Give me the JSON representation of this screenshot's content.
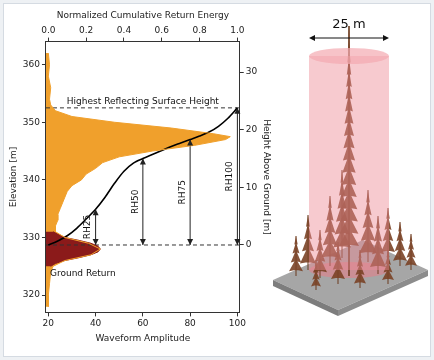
{
  "chart_data": {
    "type": "line",
    "xlabel": "Waveform Amplitude",
    "x2label": "Normalized Cumulative Return Energy",
    "ylabel": "Elevation [m]",
    "y2label": "Height Above Ground [m]",
    "xlim": [
      19,
      101
    ],
    "xticks": [
      20,
      40,
      60,
      80,
      100
    ],
    "x2lim": [
      -0.0125,
      1.0125
    ],
    "x2ticks": [
      {
        "value": 0,
        "label": "0.0"
      },
      {
        "value": 0.2,
        "label": "0.2"
      },
      {
        "value": 0.4,
        "label": "0.4"
      },
      {
        "value": 0.6,
        "label": "0.6"
      },
      {
        "value": 0.8,
        "label": "0.8"
      },
      {
        "value": 1,
        "label": "1.0"
      }
    ],
    "ylim": [
      317,
      364
    ],
    "yticks": [
      320,
      330,
      340,
      350,
      360
    ],
    "y2lim": [
      -11.7,
      35.3
    ],
    "y2ticks": [
      0,
      10,
      20,
      30
    ],
    "grid": false,
    "series": [
      {
        "type": "area",
        "color": "#f0a02c",
        "x": [
          20,
          20.5,
          20,
          21,
          20.5,
          21,
          23,
          30,
          48,
          72,
          90,
          97,
          95,
          82,
          64,
          50,
          43,
          40,
          36,
          34,
          30,
          28,
          27,
          26,
          25,
          24,
          24,
          23,
          23,
          27,
          37,
          42,
          38,
          27,
          22,
          21,
          20.5,
          20,
          20
        ],
        "y": [
          362,
          360,
          358,
          356,
          354,
          353,
          352,
          351,
          350,
          349,
          348,
          347.5,
          347,
          346,
          345,
          344,
          343,
          342,
          341,
          340,
          339,
          338,
          337,
          336,
          335,
          334,
          333,
          332,
          331,
          330,
          329,
          328,
          327,
          326,
          325,
          324,
          322,
          320,
          318
        ]
      },
      {
        "type": "area",
        "color": "#8b1a1a",
        "label": "Ground Return",
        "x": [
          22,
          27,
          33,
          38,
          41,
          42,
          41,
          38,
          33,
          27,
          23,
          21
        ],
        "y": [
          331,
          330,
          329.5,
          329,
          328.5,
          328,
          327.5,
          327,
          326.5,
          326,
          325.5,
          325
        ]
      },
      {
        "type": "line",
        "color": "#000000",
        "axis": "x2",
        "x": [
          0,
          0.05,
          0.1,
          0.15,
          0.2,
          0.25,
          0.3,
          0.35,
          0.4,
          0.45,
          0.5,
          0.55,
          0.6,
          0.65,
          0.7,
          0.75,
          0.8,
          0.85,
          0.9,
          0.95,
          1
        ],
        "y": [
          328.7,
          329.4,
          330.3,
          331.6,
          333.2,
          334.9,
          337,
          339.4,
          341.5,
          342.9,
          343.7,
          344.4,
          345.1,
          345.8,
          346.4,
          347,
          347.6,
          348.3,
          349.3,
          350.7,
          352.5
        ]
      }
    ],
    "reference_lines": [
      {
        "label": "Highest Reflecting Surface Height",
        "y": 352.5,
        "line_style": "dashed"
      },
      {
        "y": 328.7,
        "line_style": "dashed"
      }
    ],
    "rh_metrics": [
      {
        "label": "RH25",
        "x2": 0.25,
        "y2": [
          0,
          6.2
        ]
      },
      {
        "label": "RH50",
        "x2": 0.5,
        "y2": [
          0,
          15
        ]
      },
      {
        "label": "RH75",
        "x2": 0.75,
        "y2": [
          0,
          18.3
        ]
      },
      {
        "label": "RH100",
        "x2": 1,
        "y2": [
          0,
          23.8
        ]
      }
    ]
  },
  "illustration": {
    "footprint_label": "25 m"
  }
}
